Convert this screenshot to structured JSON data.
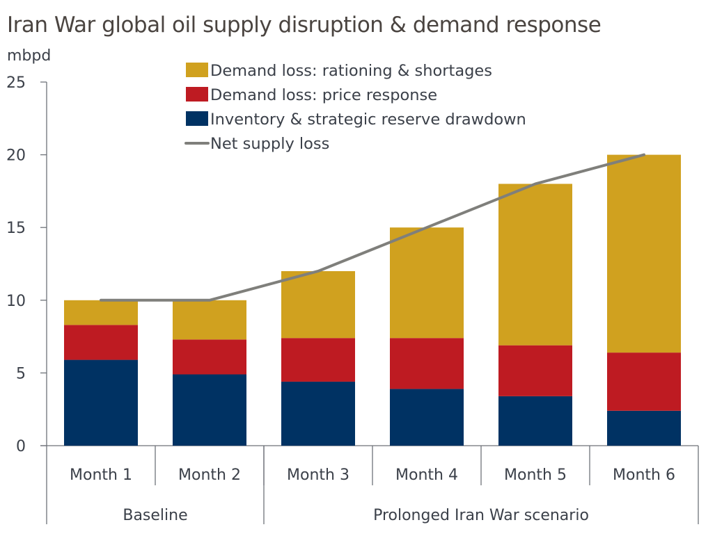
{
  "chart_data": {
    "type": "bar",
    "stacked": true,
    "title": "Iran War global oil supply disruption & demand response",
    "ylabel": "mbpd",
    "xlabel": "",
    "ylim": [
      0,
      25
    ],
    "yticks": [
      0,
      5,
      10,
      15,
      20,
      25
    ],
    "grid": false,
    "legend_position": "top-center",
    "categories": [
      "Month 1",
      "Month 2",
      "Month 3",
      "Month 4",
      "Month 5",
      "Month 6"
    ],
    "groups": [
      {
        "label": "Baseline",
        "categories": [
          "Month 1",
          "Month 2"
        ]
      },
      {
        "label": "Prolonged Iran War scenario",
        "categories": [
          "Month 3",
          "Month 4",
          "Month 5",
          "Month 6"
        ]
      }
    ],
    "series": [
      {
        "name": "Inventory & strategic reserve drawdown",
        "kind": "bar",
        "color": "#003263",
        "values": [
          5.9,
          4.9,
          4.4,
          3.9,
          3.4,
          2.4
        ]
      },
      {
        "name": "Demand loss: price response",
        "kind": "bar",
        "color": "#be1b22",
        "values": [
          2.4,
          2.4,
          3.0,
          3.5,
          3.5,
          4.0
        ]
      },
      {
        "name": "Demand loss: rationing & shortages",
        "kind": "bar",
        "color": "#d0a11f",
        "values": [
          1.7,
          2.7,
          4.6,
          7.6,
          11.1,
          13.6
        ]
      },
      {
        "name": "Net supply loss",
        "kind": "line",
        "color": "#7f7f7b",
        "values": [
          10,
          10,
          12,
          15,
          18,
          20
        ]
      }
    ],
    "legend": [
      {
        "label": "Demand loss: rationing & shortages",
        "kind": "swatch",
        "color": "#d0a11f"
      },
      {
        "label": "Demand loss: price response",
        "kind": "swatch",
        "color": "#be1b22"
      },
      {
        "label": "Inventory & strategic reserve drawdown",
        "kind": "swatch",
        "color": "#003263"
      },
      {
        "label": "Net supply loss",
        "kind": "line",
        "color": "#7f7f7b"
      }
    ]
  }
}
